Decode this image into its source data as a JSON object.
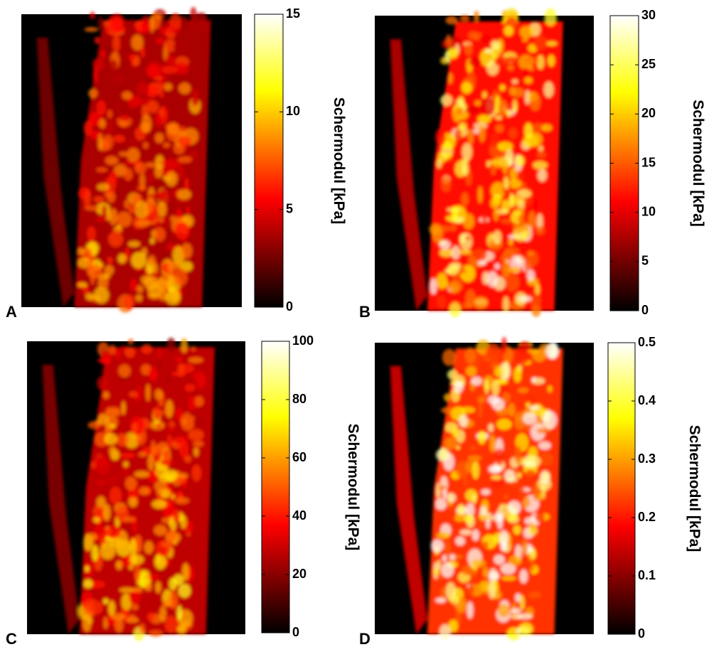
{
  "chart_data": [
    {
      "type": "heatmap",
      "panel_label": "A",
      "colorbar_label": "Schermodul [kPa]",
      "clim": [
        0,
        15
      ],
      "cticks": [
        0,
        5,
        10,
        15
      ]
    },
    {
      "type": "heatmap",
      "panel_label": "B",
      "colorbar_label": "Schermodul [kPa]",
      "clim": [
        0,
        30
      ],
      "cticks": [
        0,
        5,
        10,
        15,
        20,
        25,
        30
      ]
    },
    {
      "type": "heatmap",
      "panel_label": "C",
      "colorbar_label": "Schermodul [kPa]",
      "clim": [
        0,
        100
      ],
      "cticks": [
        0,
        20,
        40,
        60,
        80,
        100
      ]
    },
    {
      "type": "heatmap",
      "panel_label": "D",
      "colorbar_label": "Schermodul [kPa]",
      "clim": [
        0,
        0.5
      ],
      "cticks": [
        0,
        0.1,
        0.2,
        0.3,
        0.4,
        0.5
      ]
    }
  ]
}
